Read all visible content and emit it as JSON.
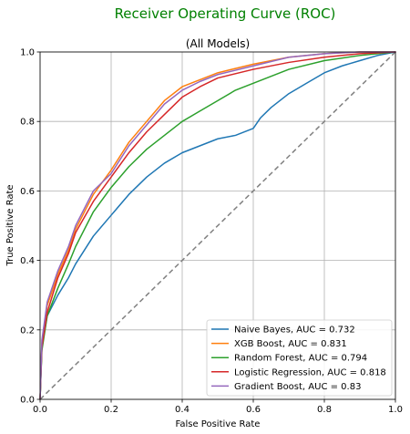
{
  "chart_data": {
    "type": "line",
    "title": "Receiver Operating Curve (ROC)",
    "subtitle": "(All Models)",
    "title_color": "#008000",
    "xlabel": "False Positive Rate",
    "ylabel": "True Positive Rate",
    "xlim": [
      0,
      1
    ],
    "ylim": [
      0,
      1
    ],
    "xticks": [
      "0.0",
      "0.2",
      "0.4",
      "0.6",
      "0.8",
      "1.0"
    ],
    "yticks": [
      "0.0",
      "0.2",
      "0.4",
      "0.6",
      "0.8",
      "1.0"
    ],
    "grid": true,
    "legend_position": "lower-right",
    "series": [
      {
        "name": "Naive Bayes, AUC = 0.732",
        "color": "#1f77b4",
        "x": [
          0,
          0.005,
          0.02,
          0.05,
          0.08,
          0.1,
          0.15,
          0.2,
          0.25,
          0.3,
          0.35,
          0.4,
          0.45,
          0.5,
          0.55,
          0.6,
          0.62,
          0.65,
          0.7,
          0.75,
          0.8,
          0.85,
          0.9,
          0.95,
          1.0
        ],
        "y": [
          0,
          0.15,
          0.24,
          0.3,
          0.35,
          0.39,
          0.47,
          0.53,
          0.59,
          0.64,
          0.68,
          0.71,
          0.73,
          0.75,
          0.76,
          0.78,
          0.81,
          0.84,
          0.88,
          0.91,
          0.94,
          0.96,
          0.975,
          0.99,
          1.0
        ]
      },
      {
        "name": "XGB Boost, AUC = 0.831",
        "color": "#ff7f0e",
        "x": [
          0,
          0.005,
          0.02,
          0.05,
          0.08,
          0.1,
          0.15,
          0.2,
          0.25,
          0.3,
          0.35,
          0.4,
          0.45,
          0.5,
          0.6,
          0.7,
          0.8,
          0.9,
          1.0
        ],
        "y": [
          0,
          0.16,
          0.27,
          0.36,
          0.43,
          0.49,
          0.59,
          0.66,
          0.74,
          0.8,
          0.86,
          0.9,
          0.92,
          0.94,
          0.965,
          0.985,
          0.995,
          1.0,
          1.0
        ]
      },
      {
        "name": "Random Forest, AUC = 0.794",
        "color": "#2ca02c",
        "x": [
          0,
          0.005,
          0.02,
          0.05,
          0.08,
          0.1,
          0.15,
          0.2,
          0.25,
          0.3,
          0.35,
          0.4,
          0.45,
          0.5,
          0.55,
          0.6,
          0.7,
          0.8,
          0.9,
          1.0
        ],
        "y": [
          0,
          0.14,
          0.24,
          0.32,
          0.39,
          0.44,
          0.54,
          0.61,
          0.67,
          0.72,
          0.76,
          0.8,
          0.83,
          0.86,
          0.89,
          0.91,
          0.95,
          0.975,
          0.99,
          1.0
        ]
      },
      {
        "name": "Logistic Regression, AUC = 0.818",
        "color": "#d62728",
        "x": [
          0,
          0.005,
          0.02,
          0.05,
          0.08,
          0.1,
          0.15,
          0.2,
          0.25,
          0.3,
          0.35,
          0.4,
          0.45,
          0.5,
          0.6,
          0.7,
          0.8,
          0.9,
          1.0
        ],
        "y": [
          0,
          0.15,
          0.25,
          0.35,
          0.42,
          0.48,
          0.57,
          0.64,
          0.71,
          0.77,
          0.82,
          0.87,
          0.9,
          0.925,
          0.95,
          0.97,
          0.985,
          0.995,
          1.0
        ]
      },
      {
        "name": "Gradient Boost, AUC = 0.83",
        "color": "#9467bd",
        "x": [
          0,
          0.005,
          0.02,
          0.05,
          0.08,
          0.1,
          0.15,
          0.2,
          0.25,
          0.3,
          0.35,
          0.4,
          0.45,
          0.5,
          0.6,
          0.7,
          0.8,
          0.9,
          1.0
        ],
        "y": [
          0,
          0.17,
          0.28,
          0.37,
          0.44,
          0.5,
          0.6,
          0.65,
          0.73,
          0.79,
          0.85,
          0.89,
          0.915,
          0.935,
          0.96,
          0.985,
          0.995,
          1.0,
          1.0
        ]
      }
    ],
    "reference_line": {
      "x": [
        0,
        1
      ],
      "y": [
        0,
        1
      ],
      "color": "#808080",
      "style": "dashed"
    }
  }
}
